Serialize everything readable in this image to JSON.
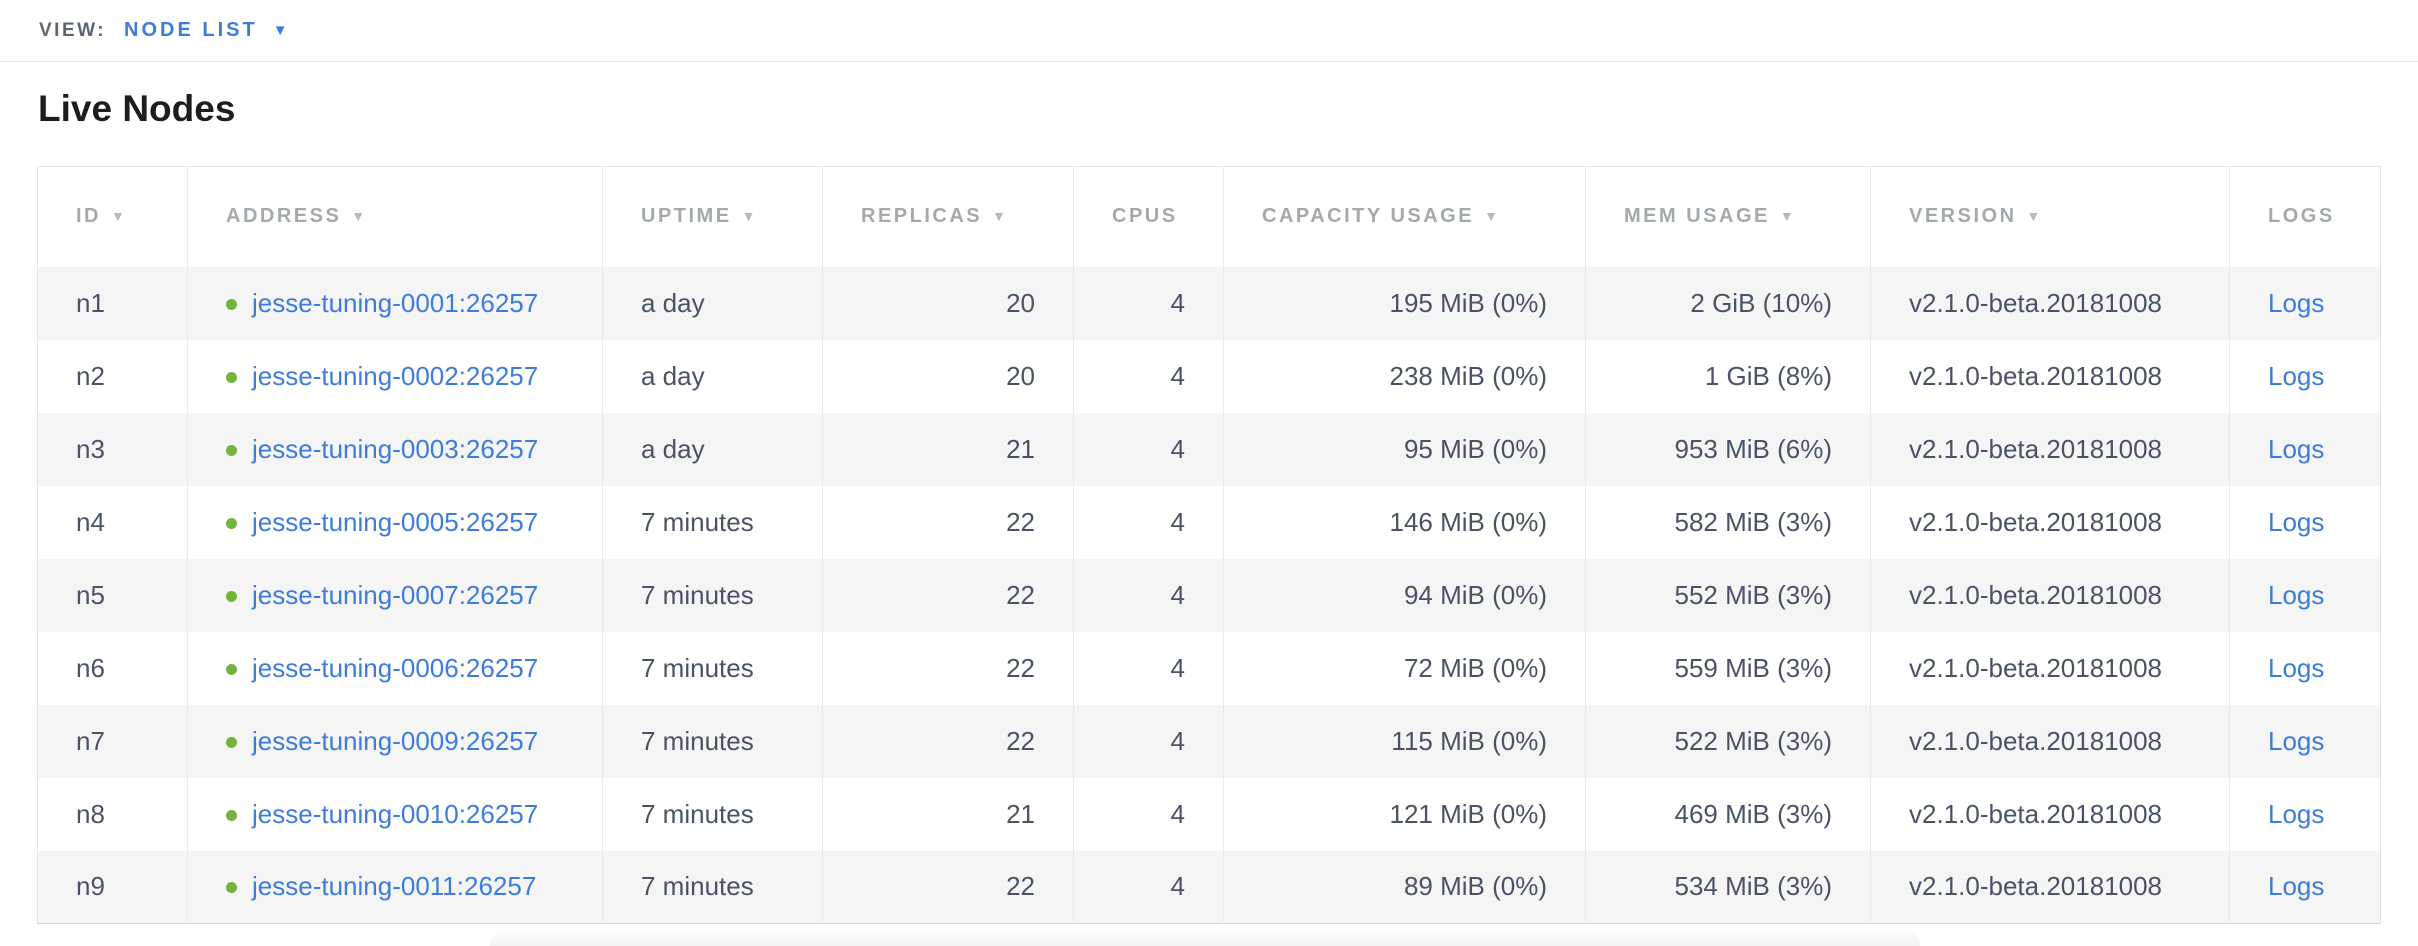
{
  "view_bar": {
    "label": "VIEW:",
    "selected": "NODE LIST",
    "caret_icon": "caret-down"
  },
  "page": {
    "title": "Live Nodes"
  },
  "table": {
    "columns": [
      {
        "key": "id",
        "label": "ID",
        "sortable": true,
        "align": "left"
      },
      {
        "key": "address",
        "label": "ADDRESS",
        "sortable": true,
        "align": "left"
      },
      {
        "key": "uptime",
        "label": "UPTIME",
        "sortable": true,
        "align": "left"
      },
      {
        "key": "replicas",
        "label": "REPLICAS",
        "sortable": true,
        "align": "left"
      },
      {
        "key": "cpus",
        "label": "CPUS",
        "sortable": false,
        "align": "left"
      },
      {
        "key": "capacity",
        "label": "CAPACITY USAGE",
        "sortable": true,
        "align": "left"
      },
      {
        "key": "mem",
        "label": "MEM USAGE",
        "sortable": true,
        "align": "left"
      },
      {
        "key": "version",
        "label": "VERSION",
        "sortable": true,
        "align": "left"
      },
      {
        "key": "logs",
        "label": "LOGS",
        "sortable": false,
        "align": "left"
      }
    ],
    "rows": [
      {
        "id": "n1",
        "status": "healthy",
        "address": "jesse-tuning-0001:26257",
        "uptime": "a day",
        "replicas": "20",
        "cpus": "4",
        "capacity": "195 MiB (0%)",
        "mem": "2 GiB (10%)",
        "version": "v2.1.0-beta.20181008",
        "logs": "Logs"
      },
      {
        "id": "n2",
        "status": "healthy",
        "address": "jesse-tuning-0002:26257",
        "uptime": "a day",
        "replicas": "20",
        "cpus": "4",
        "capacity": "238 MiB (0%)",
        "mem": "1 GiB (8%)",
        "version": "v2.1.0-beta.20181008",
        "logs": "Logs"
      },
      {
        "id": "n3",
        "status": "healthy",
        "address": "jesse-tuning-0003:26257",
        "uptime": "a day",
        "replicas": "21",
        "cpus": "4",
        "capacity": "95 MiB (0%)",
        "mem": "953 MiB (6%)",
        "version": "v2.1.0-beta.20181008",
        "logs": "Logs"
      },
      {
        "id": "n4",
        "status": "healthy",
        "address": "jesse-tuning-0005:26257",
        "uptime": "7 minutes",
        "replicas": "22",
        "cpus": "4",
        "capacity": "146 MiB (0%)",
        "mem": "582 MiB (3%)",
        "version": "v2.1.0-beta.20181008",
        "logs": "Logs"
      },
      {
        "id": "n5",
        "status": "healthy",
        "address": "jesse-tuning-0007:26257",
        "uptime": "7 minutes",
        "replicas": "22",
        "cpus": "4",
        "capacity": "94 MiB (0%)",
        "mem": "552 MiB (3%)",
        "version": "v2.1.0-beta.20181008",
        "logs": "Logs"
      },
      {
        "id": "n6",
        "status": "healthy",
        "address": "jesse-tuning-0006:26257",
        "uptime": "7 minutes",
        "replicas": "22",
        "cpus": "4",
        "capacity": "72 MiB (0%)",
        "mem": "559 MiB (3%)",
        "version": "v2.1.0-beta.20181008",
        "logs": "Logs"
      },
      {
        "id": "n7",
        "status": "healthy",
        "address": "jesse-tuning-0009:26257",
        "uptime": "7 minutes",
        "replicas": "22",
        "cpus": "4",
        "capacity": "115 MiB (0%)",
        "mem": "522 MiB (3%)",
        "version": "v2.1.0-beta.20181008",
        "logs": "Logs"
      },
      {
        "id": "n8",
        "status": "healthy",
        "address": "jesse-tuning-0010:26257",
        "uptime": "7 minutes",
        "replicas": "21",
        "cpus": "4",
        "capacity": "121 MiB (0%)",
        "mem": "469 MiB (3%)",
        "version": "v2.1.0-beta.20181008",
        "logs": "Logs"
      },
      {
        "id": "n9",
        "status": "healthy",
        "address": "jesse-tuning-0011:26257",
        "uptime": "7 minutes",
        "replicas": "22",
        "cpus": "4",
        "capacity": "89 MiB (0%)",
        "mem": "534 MiB (3%)",
        "version": "v2.1.0-beta.20181008",
        "logs": "Logs"
      }
    ]
  },
  "colors": {
    "accent_link": "#3d7cdc",
    "status_healthy": "#72b43e",
    "header_text": "#a4a9b0",
    "body_text": "#4a5366",
    "row_stripe": "#f5f5f6",
    "border": "#e2e3e4"
  }
}
